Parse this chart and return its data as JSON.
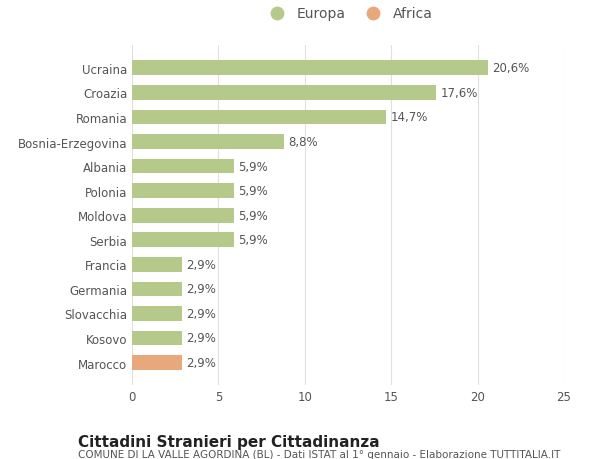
{
  "categories": [
    "Marocco",
    "Kosovo",
    "Slovacchia",
    "Germania",
    "Francia",
    "Serbia",
    "Moldova",
    "Polonia",
    "Albania",
    "Bosnia-Erzegovina",
    "Romania",
    "Croazia",
    "Ucraina"
  ],
  "values": [
    2.9,
    2.9,
    2.9,
    2.9,
    2.9,
    5.9,
    5.9,
    5.9,
    5.9,
    8.8,
    14.7,
    17.6,
    20.6
  ],
  "labels": [
    "2,9%",
    "2,9%",
    "2,9%",
    "2,9%",
    "2,9%",
    "5,9%",
    "5,9%",
    "5,9%",
    "5,9%",
    "8,8%",
    "14,7%",
    "17,6%",
    "20,6%"
  ],
  "colors": [
    "#e8a87c",
    "#b5c98a",
    "#b5c98a",
    "#b5c98a",
    "#b5c98a",
    "#b5c98a",
    "#b5c98a",
    "#b5c98a",
    "#b5c98a",
    "#b5c98a",
    "#b5c98a",
    "#b5c98a",
    "#b5c98a"
  ],
  "europa_color": "#b5c98a",
  "africa_color": "#e8a87c",
  "title": "Cittadini Stranieri per Cittadinanza",
  "subtitle": "COMUNE DI LA VALLE AGORDINA (BL) - Dati ISTAT al 1° gennaio - Elaborazione TUTTITALIA.IT",
  "xlim": [
    0,
    25
  ],
  "xticks": [
    0,
    5,
    10,
    15,
    20,
    25
  ],
  "background_color": "#ffffff",
  "bar_height": 0.6,
  "label_fontsize": 8.5,
  "tick_fontsize": 8.5,
  "title_fontsize": 11,
  "subtitle_fontsize": 7.5,
  "legend_fontsize": 10
}
